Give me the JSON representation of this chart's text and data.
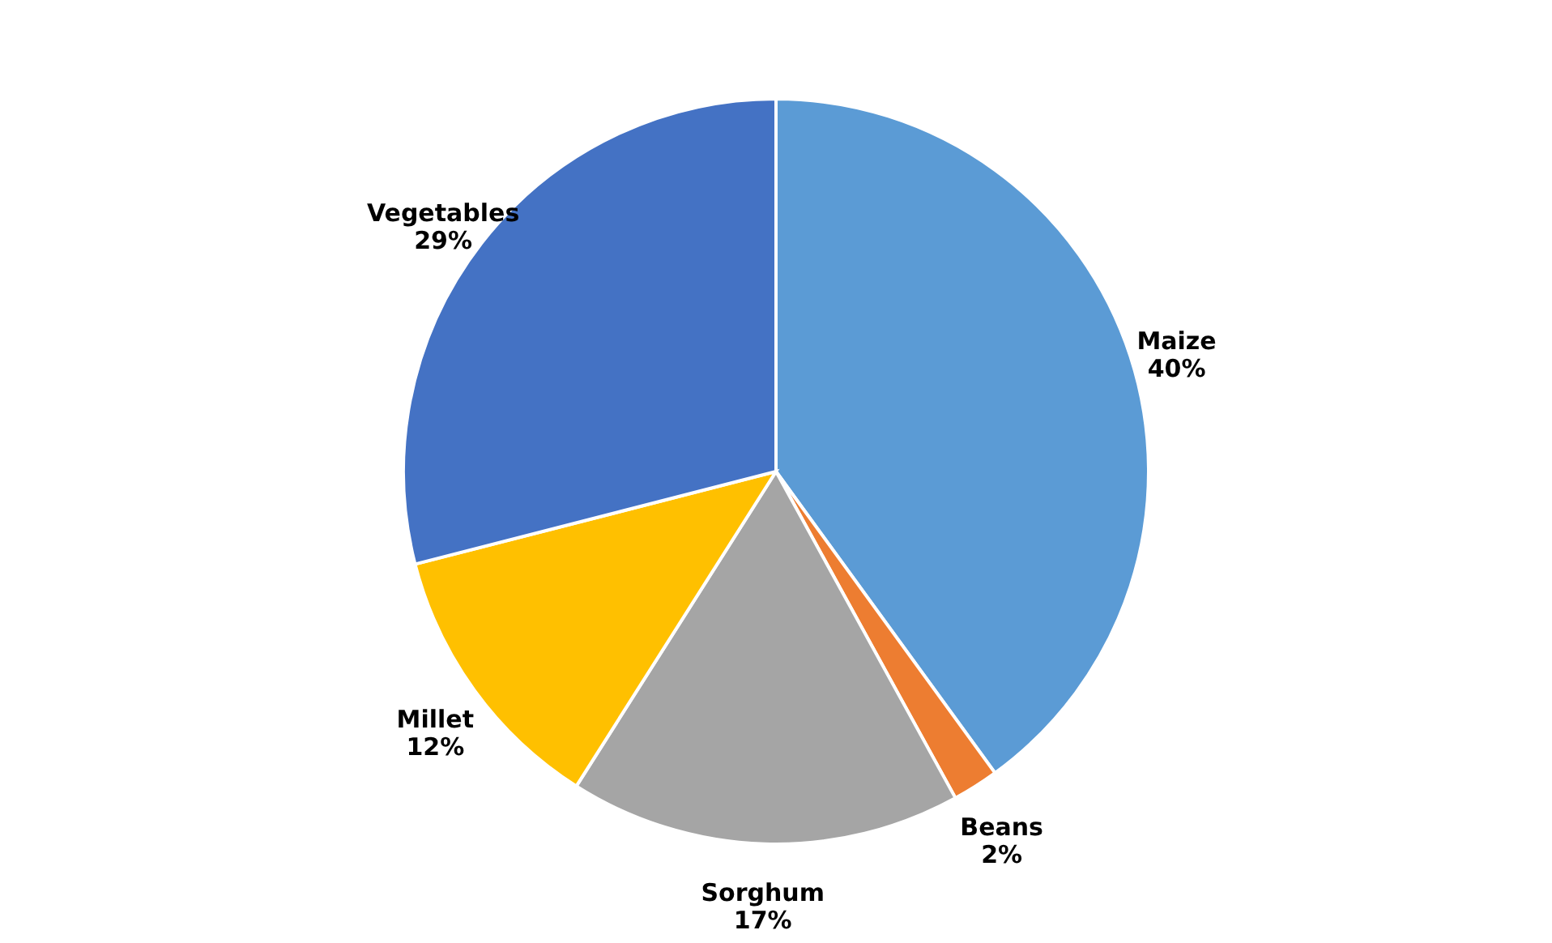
{
  "chart_data": {
    "type": "pie",
    "categories": [
      "Maize",
      "Beans",
      "Sorghum",
      "Millet",
      "Vegetables"
    ],
    "values": [
      40,
      2,
      17,
      12,
      29
    ],
    "value_labels": [
      "40%",
      "2%",
      "17%",
      "12%",
      "29%"
    ],
    "colors": [
      "#5b9bd5",
      "#ed7d31",
      "#a5a5a5",
      "#ffc000",
      "#4472c4"
    ]
  }
}
